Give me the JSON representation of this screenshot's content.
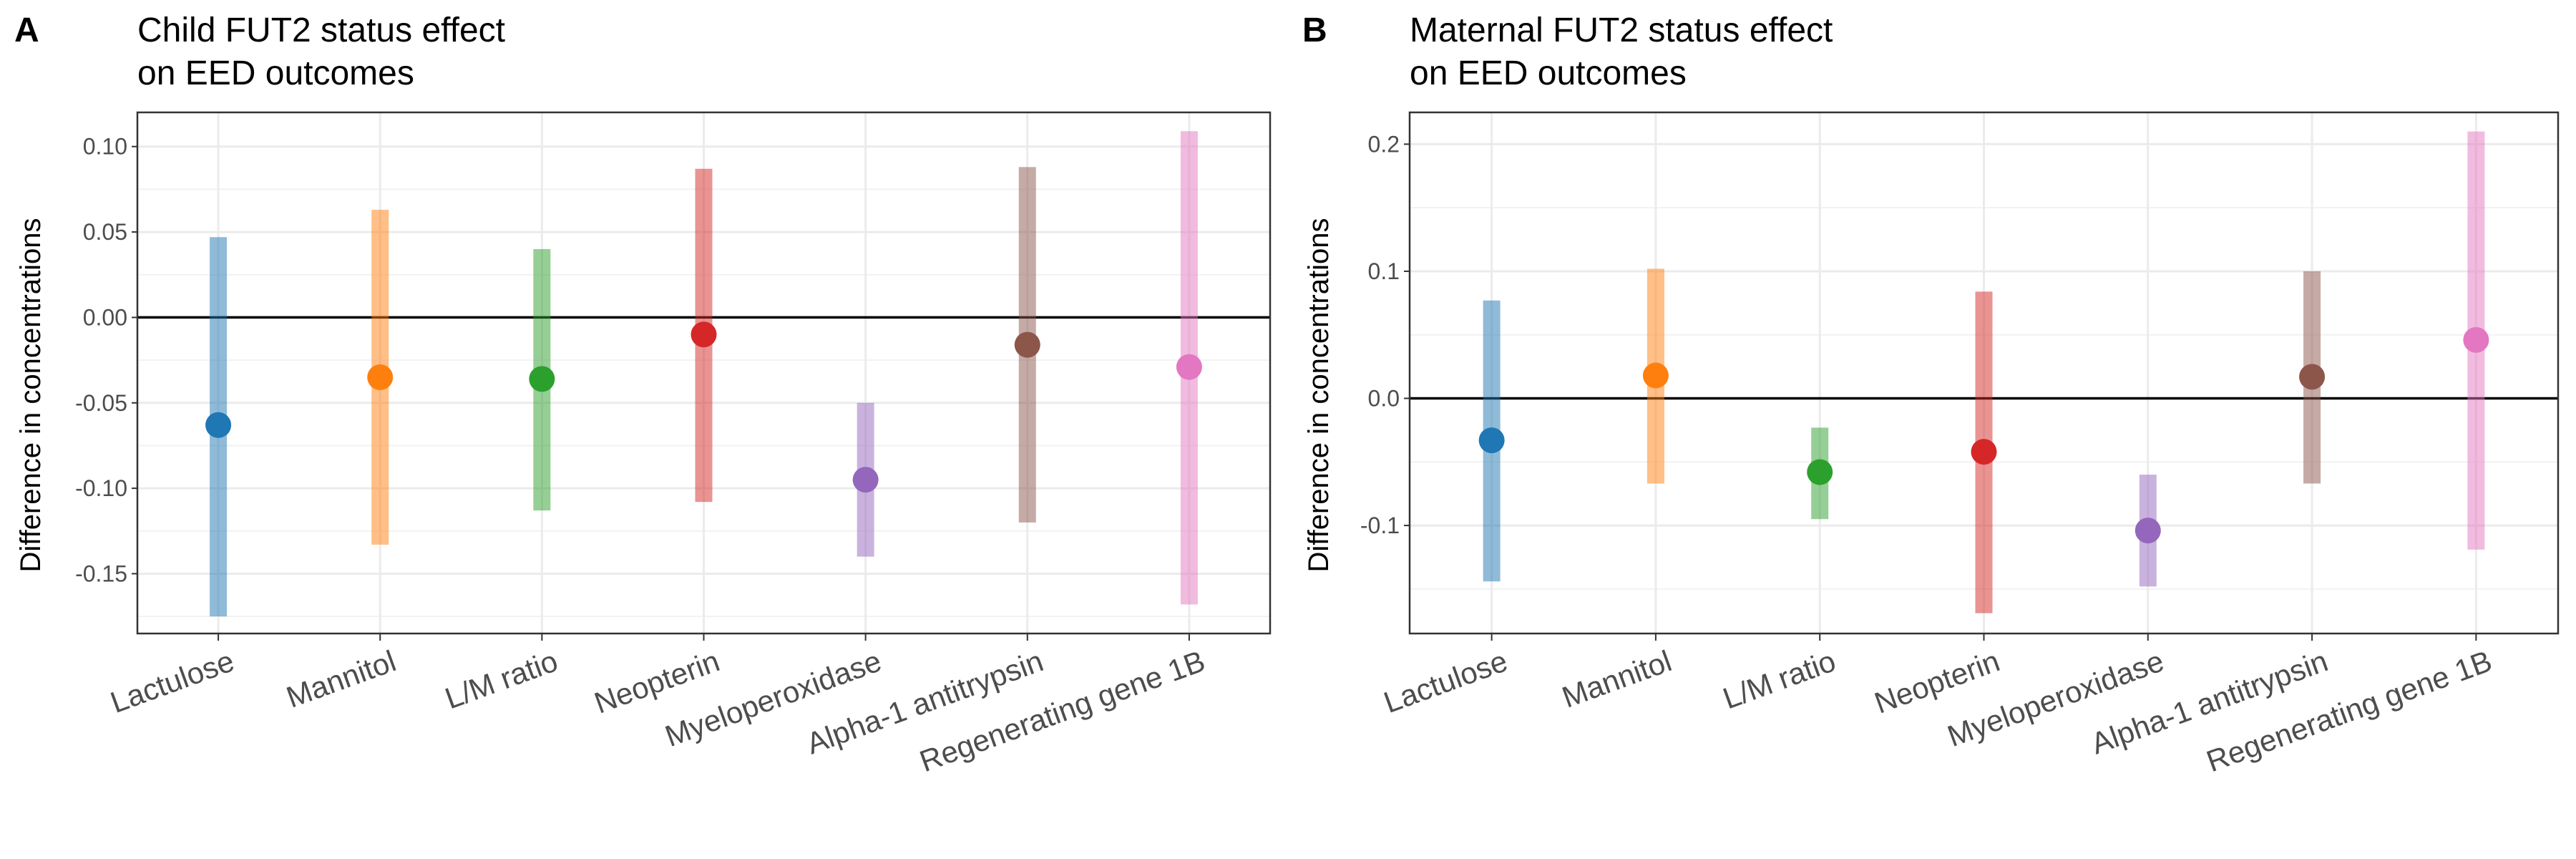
{
  "chart_data": [
    {
      "type": "errorbar",
      "panel_label": "A",
      "title_lines": [
        "Child FUT2 status effect",
        "on EED outcomes"
      ],
      "xlabel": "",
      "ylabel": "Difference in concentrations",
      "ylim": [
        -0.185,
        0.12
      ],
      "yticks": [
        0.1,
        0.05,
        0.0,
        -0.05,
        -0.1,
        -0.15
      ],
      "ytick_labels": [
        "0.10",
        "0.05",
        "0.00",
        "-0.05",
        "-0.10",
        "-0.15"
      ],
      "reference_line": 0,
      "grid": true,
      "categories": [
        "Lactulose",
        "Mannitol",
        "L/M ratio",
        "Neopterin",
        "Myeloperoxidase",
        "Alpha-1 antitrypsin",
        "Regenerating gene 1B"
      ],
      "estimates": [
        -0.063,
        -0.035,
        -0.036,
        -0.01,
        -0.095,
        -0.016,
        -0.029
      ],
      "lower": [
        -0.175,
        -0.133,
        -0.113,
        -0.108,
        -0.14,
        -0.12,
        -0.168
      ],
      "upper": [
        0.047,
        0.063,
        0.04,
        0.087,
        -0.05,
        0.088,
        0.109
      ],
      "colors": [
        "#1f77b4",
        "#ff7f0e",
        "#2ca02c",
        "#d62728",
        "#9467bd",
        "#8c564b",
        "#e377c2"
      ]
    },
    {
      "type": "errorbar",
      "panel_label": "B",
      "title_lines": [
        "Maternal FUT2 status effect",
        "on EED outcomes"
      ],
      "xlabel": "",
      "ylabel": "Difference in concentrations",
      "ylim": [
        -0.185,
        0.225
      ],
      "yticks": [
        0.2,
        0.1,
        0.0,
        -0.1
      ],
      "ytick_labels": [
        "0.2",
        "0.1",
        "0.0",
        "-0.1"
      ],
      "reference_line": 0,
      "grid": true,
      "categories": [
        "Lactulose",
        "Mannitol",
        "L/M ratio",
        "Neopterin",
        "Myeloperoxidase",
        "Alpha-1 antitrypsin",
        "Regenerating gene 1B"
      ],
      "estimates": [
        -0.033,
        0.018,
        -0.058,
        -0.042,
        -0.104,
        0.017,
        0.046
      ],
      "lower": [
        -0.144,
        -0.067,
        -0.095,
        -0.169,
        -0.148,
        -0.067,
        -0.119
      ],
      "upper": [
        0.077,
        0.102,
        -0.023,
        0.084,
        -0.06,
        0.1,
        0.21
      ],
      "colors": [
        "#1f77b4",
        "#ff7f0e",
        "#2ca02c",
        "#d62728",
        "#9467bd",
        "#8c564b",
        "#e377c2"
      ]
    }
  ]
}
